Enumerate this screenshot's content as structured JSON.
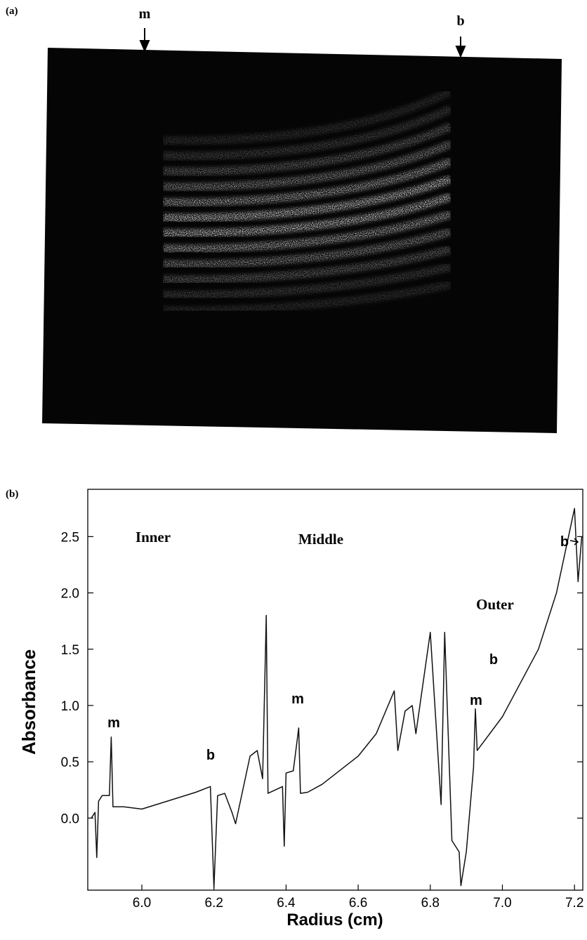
{
  "figure_a": {
    "label": "(a)",
    "markers": [
      "m",
      "b"
    ]
  },
  "chart_data": {
    "type": "line",
    "panel_label": "(b)",
    "x_label": "Radius (cm)",
    "y_label": "Absorbance",
    "x": [
      5.86,
      5.87,
      5.875,
      5.88,
      5.89,
      5.91,
      5.915,
      5.92,
      5.95,
      6.0,
      6.05,
      6.1,
      6.15,
      6.19,
      6.2,
      6.21,
      6.23,
      6.25,
      6.26,
      6.3,
      6.32,
      6.335,
      6.345,
      6.35,
      6.39,
      6.395,
      6.4,
      6.42,
      6.435,
      6.44,
      6.46,
      6.5,
      6.6,
      6.65,
      6.7,
      6.71,
      6.73,
      6.75,
      6.76,
      6.8,
      6.83,
      6.84,
      6.86,
      6.88,
      6.885,
      6.9,
      6.92,
      6.925,
      6.93,
      7.0,
      7.1,
      7.15,
      7.2,
      7.21,
      7.22
    ],
    "values": [
      0.0,
      0.05,
      -0.35,
      0.15,
      0.2,
      0.2,
      0.72,
      0.1,
      0.1,
      0.08,
      0.13,
      0.18,
      0.23,
      0.28,
      -0.62,
      0.2,
      0.22,
      0.05,
      -0.05,
      0.55,
      0.6,
      0.35,
      1.8,
      0.22,
      0.28,
      -0.25,
      0.4,
      0.42,
      0.8,
      0.22,
      0.23,
      0.3,
      0.55,
      0.75,
      1.13,
      0.6,
      0.95,
      1.0,
      0.75,
      1.65,
      0.12,
      1.65,
      -0.2,
      -0.3,
      -0.6,
      -0.3,
      0.45,
      0.97,
      0.6,
      0.9,
      1.5,
      2.0,
      2.75,
      2.1,
      2.5
    ],
    "color": "#111111",
    "xlim": [
      5.85,
      7.223
    ],
    "ylim": [
      -0.64,
      2.92
    ],
    "xticks": [
      {
        "value": 6,
        "label": "6.0"
      },
      6.2,
      6.4,
      6.6,
      6.8,
      {
        "value": 7,
        "label": "7.0"
      },
      7.2
    ],
    "yticks": [
      {
        "value": 0,
        "label": "0.0"
      },
      0.5,
      {
        "value": 1,
        "label": "1.0"
      },
      1.5,
      {
        "value": 2,
        "label": "2.0"
      },
      2.5
    ],
    "annotations": [
      "Inner",
      "Middle",
      "Outer",
      "m",
      "b",
      "m",
      "b",
      "m",
      "b"
    ]
  }
}
